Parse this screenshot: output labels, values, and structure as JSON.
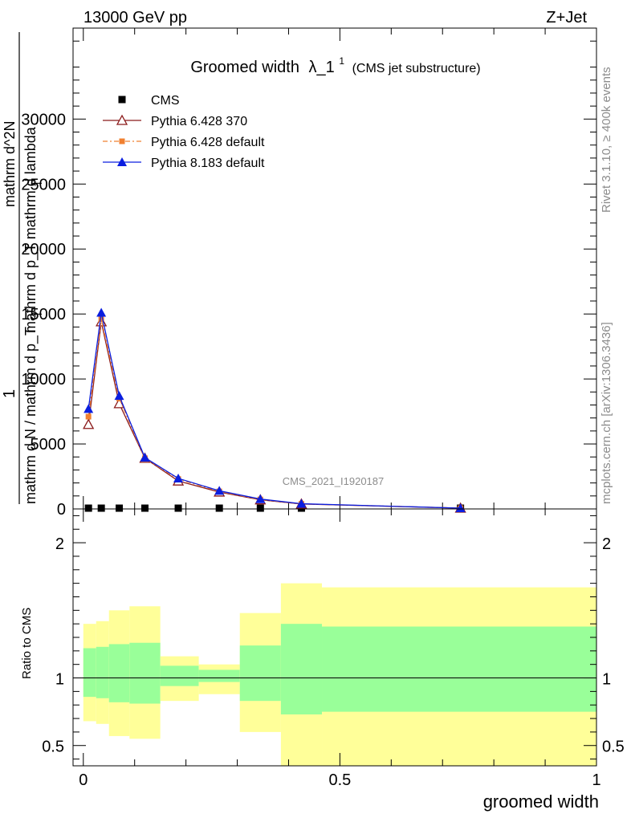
{
  "header": {
    "left": "13000 GeV pp",
    "right": "Z+Jet"
  },
  "side": {
    "rivet": "Rivet 3.1.10, ≥ 400k events",
    "mcplots": "mcplots.cern.ch [arXiv:1306.3436]"
  },
  "chart_data": [
    {
      "type": "line",
      "title_main": "Groomed width",
      "title_lambda": "λ_1",
      "title_sup": "1",
      "title_note": "(CMS jet substructure)",
      "ylabel_one": "1",
      "ylabel_den": "mathrm d N / mathrm d p_T",
      "ylabel_den_sub": "T",
      "ylabel_num": "mathrm d^2N",
      "ylabel_num2": "mathrm d p_T mathrm d lambda",
      "ylabel_num2_sub": "T",
      "watermark": "CMS_2021_I1920187",
      "xlim": [
        -0.02,
        1.0
      ],
      "ylim": [
        0,
        37000
      ],
      "yticks": [
        0,
        5000,
        10000,
        15000,
        20000,
        25000,
        30000
      ],
      "ytick_labels": [
        "0",
        "5000",
        "10000",
        "15000",
        "20000",
        "25000",
        "30000"
      ],
      "legend_position": "top-left",
      "x": [
        0.01,
        0.035,
        0.07,
        0.12,
        0.185,
        0.265,
        0.345,
        0.425,
        0.735
      ],
      "series": [
        {
          "name": "CMS",
          "color": "#000000",
          "marker": "square",
          "values": [
            60,
            60,
            60,
            60,
            60,
            60,
            60,
            60,
            60
          ]
        },
        {
          "name": "Pythia 6.428 370",
          "color": "#8b1a1a",
          "marker": "open-triangle",
          "values": [
            6500,
            14400,
            8100,
            3900,
            2150,
            1300,
            700,
            380,
            60
          ]
        },
        {
          "name": "Pythia 6.428 default",
          "color": "#f08030",
          "marker": "filled-square",
          "values": [
            7100,
            14600,
            8500,
            3900,
            2300,
            1350,
            730,
            390,
            60
          ]
        },
        {
          "name": "Pythia 8.183 default",
          "color": "#0a1ee0",
          "marker": "filled-triangle",
          "values": [
            7700,
            15100,
            8700,
            3950,
            2350,
            1400,
            760,
            400,
            60
          ]
        }
      ]
    },
    {
      "type": "area",
      "ylabel": "Ratio to CMS",
      "xlabel": "groomed width",
      "xlim": [
        -0.02,
        1.0
      ],
      "ylim": [
        0.35,
        2.25
      ],
      "xticks": [
        0,
        0.5,
        1
      ],
      "xtick_labels": [
        "0",
        "0.5",
        "1"
      ],
      "yticks": [
        0.5,
        1,
        2
      ],
      "ytick_labels": [
        "0.5",
        "1",
        "2"
      ],
      "bin_edges": [
        0.0,
        0.025,
        0.05,
        0.09,
        0.15,
        0.225,
        0.305,
        0.385,
        0.465,
        1.0
      ],
      "band_inner": [
        [
          0.86,
          1.22
        ],
        [
          0.85,
          1.23
        ],
        [
          0.82,
          1.25
        ],
        [
          0.81,
          1.26
        ],
        [
          0.94,
          1.09
        ],
        [
          0.97,
          1.06
        ],
        [
          0.83,
          1.24
        ],
        [
          0.73,
          1.4
        ],
        [
          0.75,
          1.38
        ]
      ],
      "band_outer": [
        [
          0.68,
          1.4
        ],
        [
          0.66,
          1.42
        ],
        [
          0.57,
          1.5
        ],
        [
          0.55,
          1.53
        ],
        [
          0.83,
          1.16
        ],
        [
          0.88,
          1.1
        ],
        [
          0.6,
          1.48
        ],
        [
          0.35,
          1.7
        ],
        [
          0.35,
          1.67
        ]
      ],
      "colors": {
        "inner": "#99ff99",
        "outer": "#ffff99",
        "line": "#000000"
      }
    }
  ]
}
